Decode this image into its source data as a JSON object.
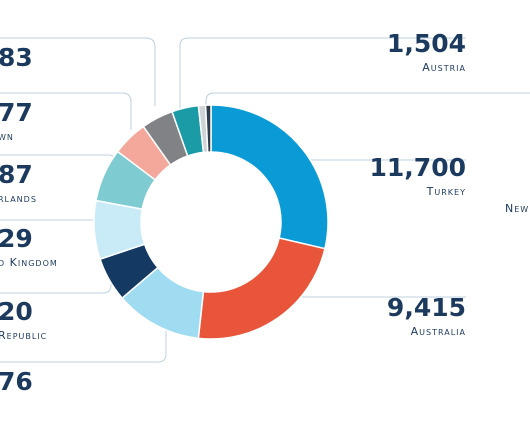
{
  "chart_data": {
    "type": "donut",
    "categories": [
      "Turkey",
      "Australia",
      null,
      null,
      null,
      null,
      null,
      null,
      "Austria",
      null,
      null
    ],
    "values": [
      11700,
      9415,
      4900,
      2500,
      3300,
      3000,
      2000,
      1800,
      1504,
      400,
      300
    ],
    "value_labels": [
      "11,700",
      "9,415",
      null,
      null,
      null,
      null,
      null,
      null,
      "1,504",
      null,
      null
    ],
    "colors": [
      "#0a9bd7",
      "#e9553a",
      "#9fdcf1",
      "#143a63",
      "#c9ebf8",
      "#7ecbd1",
      "#f4a89b",
      "#808285",
      "#1a9ba6",
      "#cfd3d6",
      "#2d3b4a"
    ],
    "annotations": [
      {
        "number": "83"
      },
      {
        "number": "77",
        "name": "wn"
      },
      {
        "number": "87",
        "name": "rlands"
      },
      {
        "number": "29",
        "name": "d Kingdom"
      },
      {
        "number": "20",
        "name": "Republic"
      },
      {
        "number": "76"
      },
      {
        "name": "New"
      }
    ]
  }
}
